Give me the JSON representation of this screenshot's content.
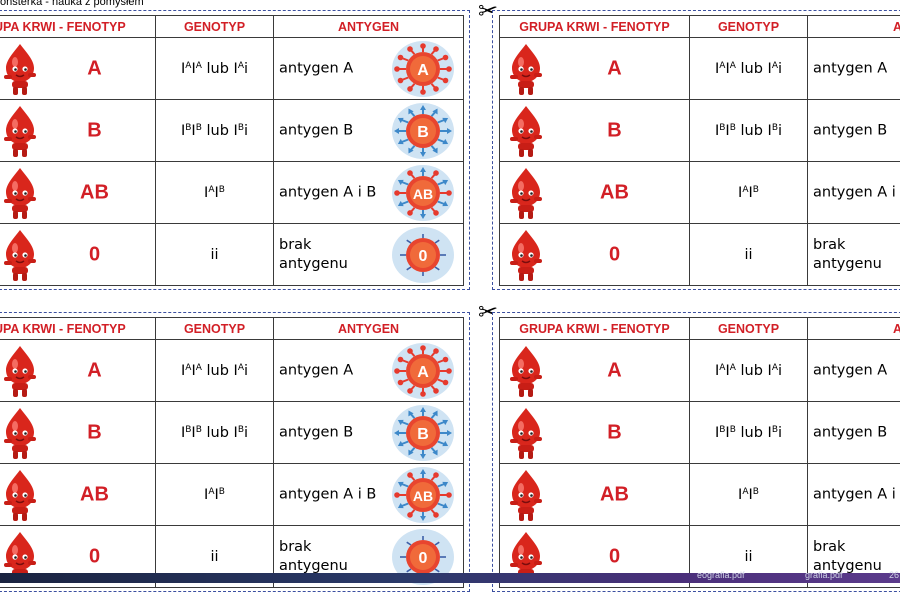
{
  "header_text": "onsterka - nauka z pomysłem",
  "columns": {
    "phenotype": "GRUPA KRWI - FENOTYP",
    "phenotype_cut": "UPA KRWI - FENOTYP",
    "genotype": "GENOTYP",
    "antigen": "ANTYGEN",
    "antigen_cut": "ANTY"
  },
  "rows": [
    {
      "group": "A",
      "genotype_html": "I<sup>A</sup>I<sup>A</sup> lub I<sup>A</sup>i",
      "antigen": "antygen A",
      "antigen_cut": "antygen A",
      "icon": "A",
      "color": "#e63a2e",
      "arrow": "#e63a2e",
      "bg": "#cfe3f3"
    },
    {
      "group": "B",
      "genotype_html": "I<sup>B</sup>I<sup>B</sup> lub I<sup>B</sup>i",
      "antigen": "antygen B",
      "antigen_cut": "antygen B",
      "icon": "B",
      "color": "#e63a2e",
      "arrow": "#3d88c9",
      "bg": "#cfe3f3"
    },
    {
      "group": "AB",
      "genotype_html": "I<sup>A</sup>I<sup>B</sup>",
      "antigen": "antygen A i B",
      "antigen_cut": "antygen A i",
      "icon": "AB",
      "color": "#e63a2e",
      "arrow": "mixed",
      "bg": "#cfe3f3"
    },
    {
      "group": "0",
      "genotype_html": "ii",
      "antigen": "brak antygenu",
      "antigen_cut": "brak antygenu",
      "icon": "0",
      "color": "#e63a2e",
      "arrow": "none",
      "bg": "#cfe3f3"
    }
  ],
  "icons": {
    "scissors": "scissors-icon",
    "mascot": "blood-drop-mascot-icon",
    "antigen": "red-blood-cell-antigen-icon"
  },
  "footer": {
    "left": "eografia.pdf",
    "right": "grafia.pdf",
    "page": "26"
  },
  "colors": {
    "accent_red": "#d21f26",
    "dashed_border": "#3b4fa0",
    "cell_light_blue": "#cfe3f3"
  }
}
